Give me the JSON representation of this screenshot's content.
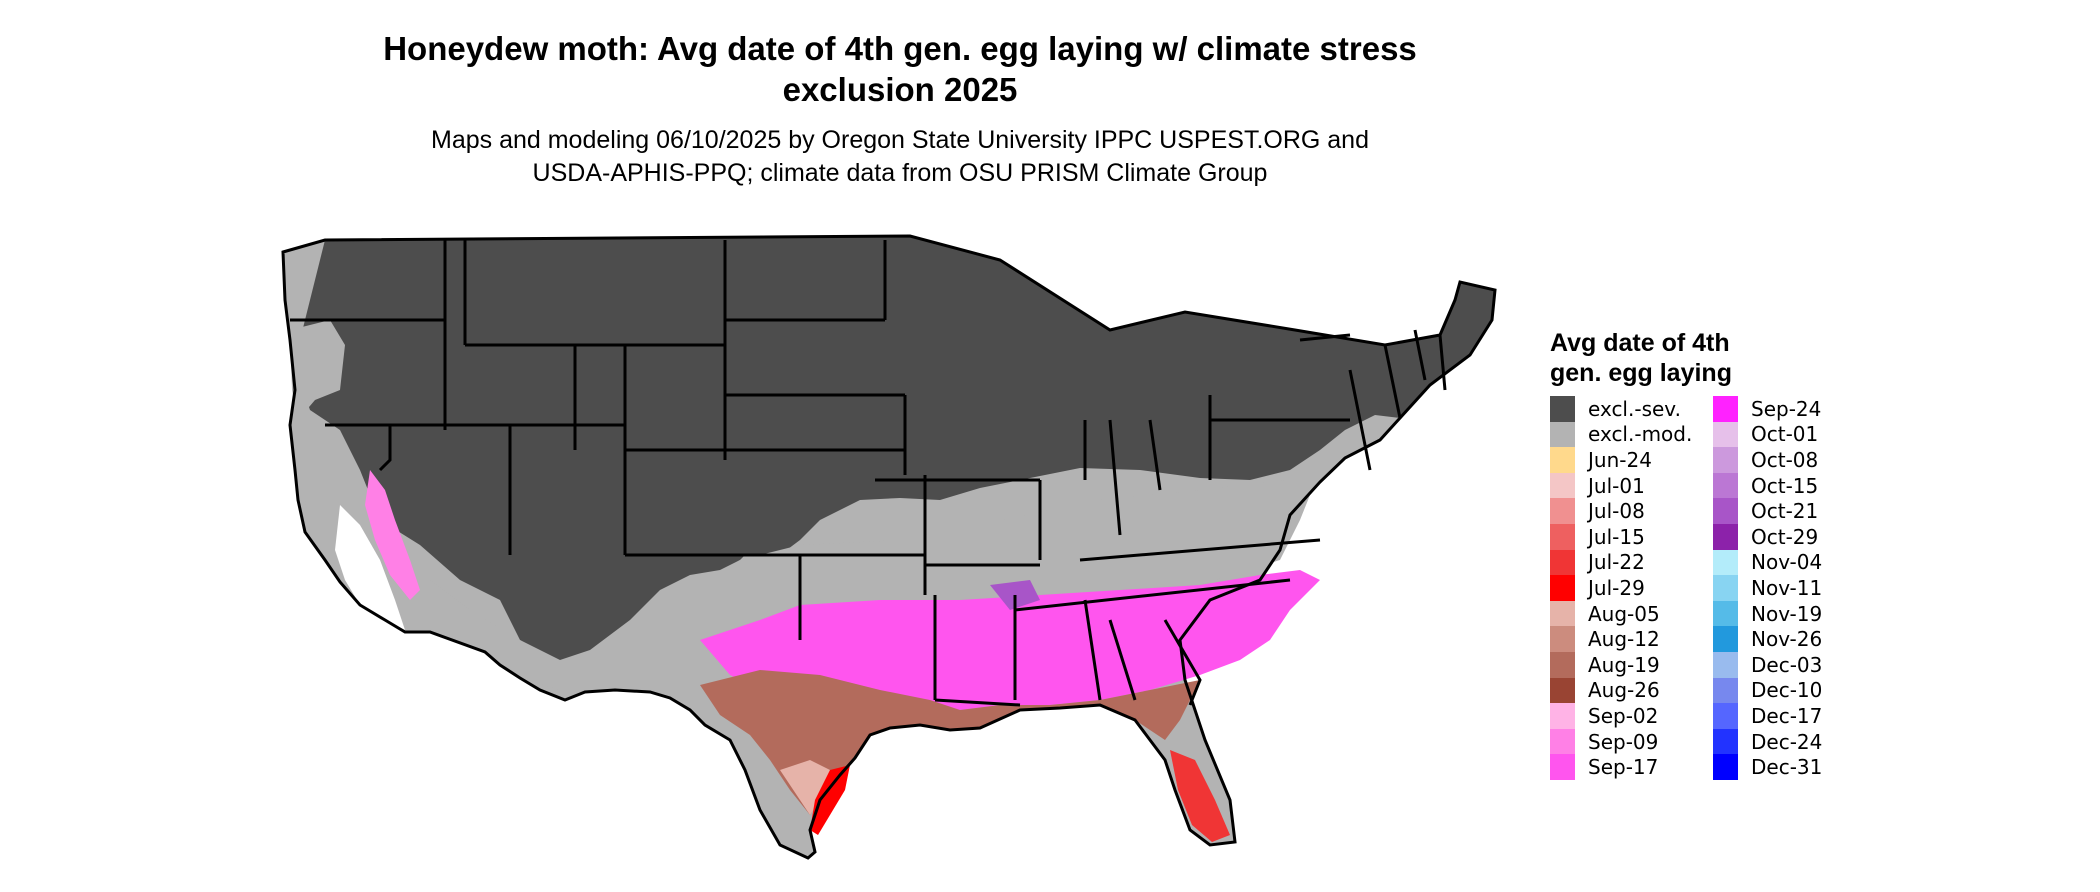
{
  "title_lines": [
    "Honeydew moth: Avg date of 4th gen. egg laying w/ climate stress",
    "exclusion 2025"
  ],
  "subtitle_lines": [
    "Maps and modeling 06/10/2025 by Oregon State University IPPC USPEST.ORG and",
    "USDA-APHIS-PPQ; climate data from OSU PRISM Climate Group"
  ],
  "legend": {
    "title_lines": [
      "Avg date of 4th",
      "gen. egg laying"
    ],
    "items": [
      {
        "label": "excl.-sev.",
        "color": "#4d4d4d"
      },
      {
        "label": "excl.-mod.",
        "color": "#b3b3b3"
      },
      {
        "label": "Jun-24",
        "color": "#ffd98c"
      },
      {
        "label": "Jul-01",
        "color": "#f4c6c6"
      },
      {
        "label": "Jul-08",
        "color": "#f09090"
      },
      {
        "label": "Jul-15",
        "color": "#ee6060"
      },
      {
        "label": "Jul-22",
        "color": "#f03535"
      },
      {
        "label": "Jul-29",
        "color": "#ff0000"
      },
      {
        "label": "Aug-05",
        "color": "#e6b3a9"
      },
      {
        "label": "Aug-12",
        "color": "#cc8c7e"
      },
      {
        "label": "Aug-19",
        "color": "#b36b5c"
      },
      {
        "label": "Aug-26",
        "color": "#994433"
      },
      {
        "label": "Sep-02",
        "color": "#ffb3e6"
      },
      {
        "label": "Sep-09",
        "color": "#ff80e6"
      },
      {
        "label": "Sep-17",
        "color": "#ff55ee"
      },
      {
        "label": "Sep-24",
        "color": "#ff22ff"
      },
      {
        "label": "Oct-01",
        "color": "#e6c0ea"
      },
      {
        "label": "Oct-08",
        "color": "#cc99dd"
      },
      {
        "label": "Oct-15",
        "color": "#bb77d4"
      },
      {
        "label": "Oct-21",
        "color": "#a855c8"
      },
      {
        "label": "Oct-29",
        "color": "#8c22aa"
      },
      {
        "label": "Nov-04",
        "color": "#b3ecfa"
      },
      {
        "label": "Nov-11",
        "color": "#88d4f2"
      },
      {
        "label": "Nov-19",
        "color": "#55bbe8"
      },
      {
        "label": "Nov-26",
        "color": "#2299dd"
      },
      {
        "label": "Dec-03",
        "color": "#99bbee"
      },
      {
        "label": "Dec-10",
        "color": "#7788ee"
      },
      {
        "label": "Dec-17",
        "color": "#5566ff"
      },
      {
        "label": "Dec-24",
        "color": "#2233ff"
      },
      {
        "label": "Dec-31",
        "color": "#0000ff"
      }
    ]
  },
  "map_colors": {
    "severe": "#4d4d4d",
    "moderate": "#b3b3b3",
    "border": "#000000"
  }
}
